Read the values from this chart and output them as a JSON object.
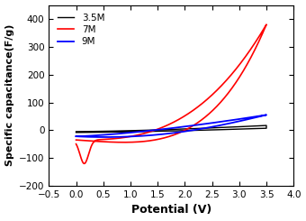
{
  "title": "",
  "xlabel": "Potential (V)",
  "ylabel": "Specific capacitance(F/g)",
  "xlim": [
    -0.5,
    4.0
  ],
  "ylim": [
    -200,
    450
  ],
  "yticks": [
    -200,
    -100,
    0,
    100,
    200,
    300,
    400
  ],
  "xticks": [
    -0.5,
    0.0,
    0.5,
    1.0,
    1.5,
    2.0,
    2.5,
    3.0,
    3.5,
    4.0
  ],
  "legend": [
    "3.5M",
    "7M",
    "9M"
  ],
  "legend_colors": [
    "black",
    "red",
    "blue"
  ],
  "background_color": "#ffffff"
}
